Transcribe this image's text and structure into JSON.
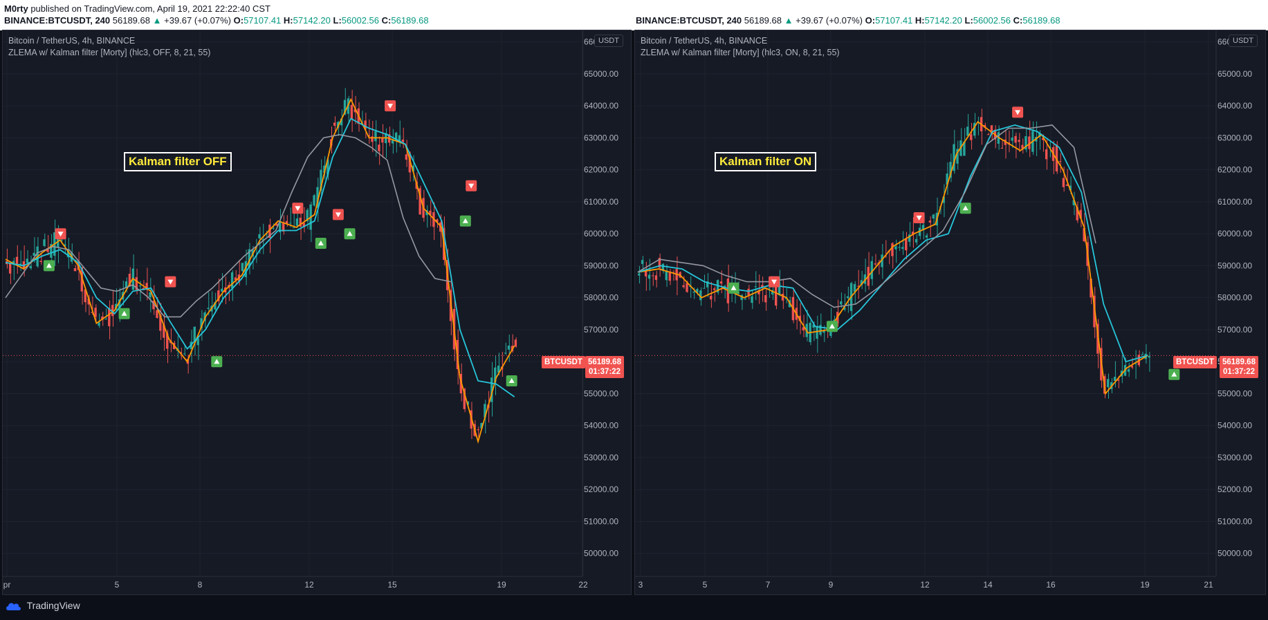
{
  "header": {
    "author": "M0rty",
    "published": "published on TradingView.com, April 19, 2021 22:22:40 CST",
    "symbol": "BINANCE:BTCUSDT, 240",
    "last": "56189.68",
    "arrow": "▲",
    "change": "+39.67 (+0.07%)",
    "o_label": "O:",
    "o": "57107.41",
    "h_label": "H:",
    "h": "57142.20",
    "l_label": "L:",
    "l": "56002.56",
    "c_label": "C:",
    "c": "56189.68"
  },
  "footer": {
    "brand": "TradingView"
  },
  "colors": {
    "background": "#161a25",
    "up_candle": "#26a69a",
    "down_candle": "#ef5350",
    "fast_line": "#ff9800",
    "mid_line": "#26c6da",
    "slow_line": "#9598a1",
    "buy_marker": "#4caf50",
    "sell_marker": "#f05350"
  },
  "panels": [
    {
      "title": "Bitcoin / TetherUS, 4h, BINANCE",
      "indicator": "ZLEMA w/ Kalman filter [Morty] (hlc3, OFF, 8, 21, 55)",
      "currency": "USDT",
      "label": "Kalman filter OFF",
      "price_symbol": "BTCUSDT",
      "price": "56189.68",
      "countdown": "01:37:22"
    },
    {
      "title": "Bitcoin / TetherUS, 4h, BINANCE",
      "indicator": "ZLEMA w/ Kalman filter [Morty] (hlc3, ON, 8, 21, 55)",
      "currency": "USDT",
      "label": "Kalman filter ON",
      "price_symbol": "BTCUSDT",
      "price": "56189.68",
      "countdown": "01:37:22"
    }
  ],
  "chart_data": [
    {
      "type": "candlestick",
      "title": "Bitcoin / TetherUS, 4h, BINANCE",
      "x_ticks": [
        "pr",
        "5",
        "8",
        "12",
        "15",
        "19",
        "22"
      ],
      "y_ticks": [
        "50000.00",
        "51000.00",
        "52000.00",
        "53000.00",
        "54000.00",
        "55000.00",
        "56000.00",
        "57000.00",
        "58000.00",
        "59000.00",
        "60000.00",
        "61000.00",
        "62000.00",
        "63000.00",
        "64000.00",
        "65000.00",
        "66000.00"
      ],
      "ylim": [
        49800,
        66100
      ],
      "last_price": 56189.68,
      "series": [
        {
          "name": "fast",
          "values": [
            59200,
            58900,
            59400,
            59800,
            59000,
            57200,
            57600,
            58600,
            58200,
            56700,
            56000,
            57400,
            58200,
            58700,
            59800,
            60400,
            60200,
            60600,
            63000,
            64200,
            63000,
            63000,
            62800,
            60800,
            60200,
            55500,
            53500,
            55500,
            56500
          ]
        },
        {
          "name": "mid",
          "values": [
            59100,
            59000,
            59300,
            59500,
            59100,
            58000,
            57500,
            58200,
            58300,
            57300,
            56400,
            57000,
            58000,
            58600,
            59500,
            60100,
            60100,
            60400,
            62400,
            63600,
            63300,
            63100,
            62800,
            61600,
            60400,
            57000,
            55400,
            55300,
            54900
          ]
        },
        {
          "name": "slow",
          "values": [
            58000,
            58700,
            59400,
            59600,
            59500,
            58900,
            58300,
            58200,
            58400,
            58000,
            57400,
            57400,
            57900,
            58300,
            58800,
            59300,
            59700,
            60100,
            61300,
            62400,
            63000,
            63100,
            63000,
            62700,
            62300,
            60500,
            59300,
            58600,
            58500
          ]
        }
      ],
      "signals": [
        {
          "type": "buy",
          "x": 0.08,
          "price": 59000
        },
        {
          "type": "sell",
          "x": 0.1,
          "price": 60000
        },
        {
          "type": "buy",
          "x": 0.21,
          "price": 57500
        },
        {
          "type": "sell",
          "x": 0.29,
          "price": 58500
        },
        {
          "type": "buy",
          "x": 0.37,
          "price": 56000
        },
        {
          "type": "sell",
          "x": 0.51,
          "price": 60800
        },
        {
          "type": "buy",
          "x": 0.55,
          "price": 59700
        },
        {
          "type": "sell",
          "x": 0.58,
          "price": 60600
        },
        {
          "type": "buy",
          "x": 0.6,
          "price": 60000
        },
        {
          "type": "sell",
          "x": 0.67,
          "price": 64000
        },
        {
          "type": "buy",
          "x": 0.8,
          "price": 60400
        },
        {
          "type": "sell",
          "x": 0.81,
          "price": 61500
        },
        {
          "type": "buy",
          "x": 0.88,
          "price": 55400
        }
      ]
    },
    {
      "type": "candlestick",
      "title": "Bitcoin / TetherUS, 4h, BINANCE",
      "x_ticks": [
        "3",
        "5",
        "7",
        "9",
        "12",
        "14",
        "16",
        "19",
        "21"
      ],
      "y_ticks": [
        "50000.00",
        "51000.00",
        "52000.00",
        "53000.00",
        "54000.00",
        "55000.00",
        "56000.00",
        "57000.00",
        "58000.00",
        "59000.00",
        "60000.00",
        "61000.00",
        "62000.00",
        "63000.00",
        "64000.00",
        "65000.00",
        "66000.00"
      ],
      "ylim": [
        49800,
        66100
      ],
      "last_price": 56189.68,
      "series": [
        {
          "name": "fast",
          "values": [
            58800,
            58900,
            58700,
            58000,
            58300,
            58000,
            58300,
            58000,
            56900,
            57000,
            58000,
            58800,
            59600,
            60000,
            60300,
            62500,
            63500,
            63000,
            62600,
            63100,
            62000,
            60200,
            55000,
            55800,
            56200
          ]
        },
        {
          "name": "mid",
          "values": [
            58800,
            59000,
            58900,
            58500,
            58300,
            58200,
            58400,
            58300,
            57100,
            57000,
            57600,
            58400,
            59200,
            59800,
            60000,
            61800,
            63200,
            63400,
            63200,
            62700,
            61300,
            57800,
            56000,
            56200
          ]
        },
        {
          "name": "slow",
          "values": [
            58800,
            59200,
            59100,
            59000,
            58700,
            58500,
            58500,
            58600,
            58100,
            57700,
            57800,
            58300,
            58900,
            59500,
            60100,
            61300,
            62800,
            63300,
            63300,
            63400,
            62700,
            59700
          ]
        }
      ],
      "signals": [
        {
          "type": "buy",
          "x": 0.17,
          "price": 58300
        },
        {
          "type": "sell",
          "x": 0.24,
          "price": 58500
        },
        {
          "type": "buy",
          "x": 0.34,
          "price": 57100
        },
        {
          "type": "sell",
          "x": 0.49,
          "price": 60500
        },
        {
          "type": "buy",
          "x": 0.57,
          "price": 60800
        },
        {
          "type": "sell",
          "x": 0.66,
          "price": 63800
        },
        {
          "type": "buy",
          "x": 0.93,
          "price": 55600
        }
      ]
    }
  ]
}
